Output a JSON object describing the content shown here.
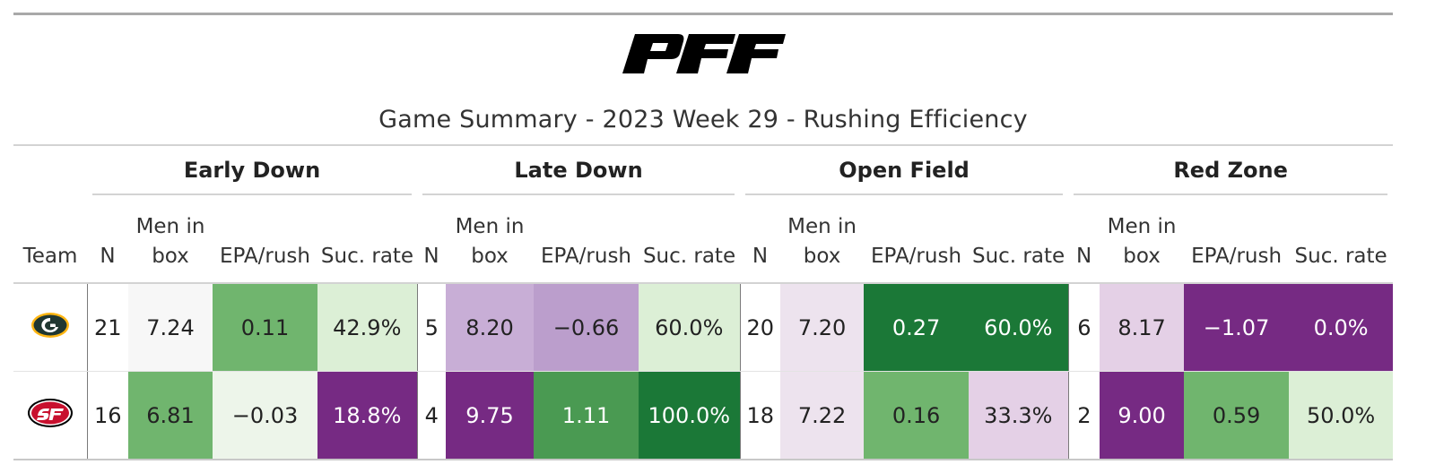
{
  "brand": {
    "logo_text": "PFF"
  },
  "title": "Game Summary - 2023 Week 29 - Rushing Efficiency",
  "groups": [
    "Early Down",
    "Late Down",
    "Open Field",
    "Red Zone"
  ],
  "columns": {
    "team": "Team",
    "n": "N",
    "men_in_box": "Men in box",
    "epa": "EPA/rush",
    "suc": "Suc. rate"
  },
  "rows": [
    {
      "team_icon": "green-bay-packers-logo",
      "cells": [
        {
          "text": "21",
          "bg": "#ffffff",
          "fg": "#222222"
        },
        {
          "text": "7.24",
          "bg": "#f7f7f7",
          "fg": "#222222"
        },
        {
          "text": "0.11",
          "bg": "#70b56e",
          "fg": "#222222"
        },
        {
          "text": "42.9%",
          "bg": "#dcefd6",
          "fg": "#222222"
        },
        {
          "text": "5",
          "bg": "#ffffff",
          "fg": "#222222"
        },
        {
          "text": "8.20",
          "bg": "#c8aed6",
          "fg": "#222222"
        },
        {
          "text": "−0.66",
          "bg": "#bb9ecc",
          "fg": "#222222"
        },
        {
          "text": "60.0%",
          "bg": "#dcefd6",
          "fg": "#222222"
        },
        {
          "text": "20",
          "bg": "#ffffff",
          "fg": "#222222"
        },
        {
          "text": "7.20",
          "bg": "#ede3ee",
          "fg": "#222222"
        },
        {
          "text": "0.27",
          "bg": "#1b7837",
          "fg": "#ffffff"
        },
        {
          "text": "60.0%",
          "bg": "#1b7837",
          "fg": "#ffffff"
        },
        {
          "text": "6",
          "bg": "#ffffff",
          "fg": "#222222"
        },
        {
          "text": "8.17",
          "bg": "#e4d0e6",
          "fg": "#222222"
        },
        {
          "text": "−1.07",
          "bg": "#762a83",
          "fg": "#ffffff"
        },
        {
          "text": "0.0%",
          "bg": "#762a83",
          "fg": "#ffffff"
        }
      ]
    },
    {
      "team_icon": "san-francisco-49ers-logo",
      "cells": [
        {
          "text": "16",
          "bg": "#ffffff",
          "fg": "#222222"
        },
        {
          "text": "6.81",
          "bg": "#70b56e",
          "fg": "#222222"
        },
        {
          "text": "−0.03",
          "bg": "#edf5ea",
          "fg": "#222222"
        },
        {
          "text": "18.8%",
          "bg": "#762a83",
          "fg": "#ffffff"
        },
        {
          "text": "4",
          "bg": "#ffffff",
          "fg": "#222222"
        },
        {
          "text": "9.75",
          "bg": "#762a83",
          "fg": "#ffffff"
        },
        {
          "text": "1.11",
          "bg": "#4a9a52",
          "fg": "#ffffff"
        },
        {
          "text": "100.0%",
          "bg": "#1b7837",
          "fg": "#ffffff"
        },
        {
          "text": "18",
          "bg": "#ffffff",
          "fg": "#222222"
        },
        {
          "text": "7.22",
          "bg": "#ede3ee",
          "fg": "#222222"
        },
        {
          "text": "0.16",
          "bg": "#70b56e",
          "fg": "#222222"
        },
        {
          "text": "33.3%",
          "bg": "#e4d0e6",
          "fg": "#222222"
        },
        {
          "text": "2",
          "bg": "#ffffff",
          "fg": "#222222"
        },
        {
          "text": "9.00",
          "bg": "#762a83",
          "fg": "#ffffff"
        },
        {
          "text": "0.59",
          "bg": "#70b56e",
          "fg": "#222222"
        },
        {
          "text": "50.0%",
          "bg": "#dcefd6",
          "fg": "#222222"
        }
      ]
    }
  ]
}
